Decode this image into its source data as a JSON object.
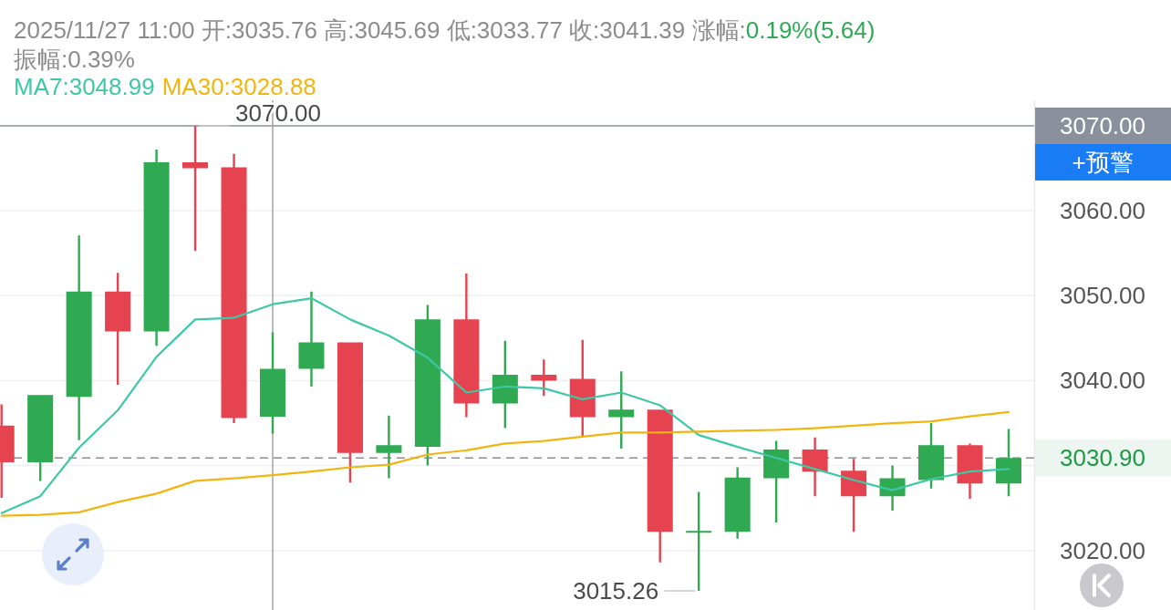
{
  "chart_data": {
    "type": "candlestick",
    "title": "2025/11/27 11:00 开:3035.76 高:3045.69 低:3033.77 收:3041.39 涨幅:0.19%(5.64)",
    "subtitle": "振幅:0.39%",
    "categories": [
      null,
      null,
      null,
      null,
      null,
      null,
      null,
      null,
      null,
      null,
      null,
      null,
      null,
      null,
      null,
      null,
      null,
      null,
      null,
      null,
      null,
      null,
      null,
      null,
      null,
      null,
      null
    ],
    "ohlc": [
      [
        3034.7,
        3037.2,
        3026.2,
        3030.4
      ],
      [
        3030.4,
        3038.3,
        3028.2,
        3038.3
      ],
      [
        3038.1,
        3057.1,
        3033.0,
        3050.5
      ],
      [
        3050.5,
        3052.7,
        3039.5,
        3045.8
      ],
      [
        3045.8,
        3067.2,
        3044.1,
        3065.7
      ],
      [
        3065.7,
        3070.0,
        3055.3,
        3065.0
      ],
      [
        3065.1,
        3066.7,
        3035.0,
        3035.6
      ],
      [
        3035.76,
        3045.69,
        3033.77,
        3041.39
      ],
      [
        3041.4,
        3050.5,
        3039.3,
        3044.5
      ],
      [
        3044.5,
        3044.5,
        3028.0,
        3031.5
      ],
      [
        3031.5,
        3035.9,
        3028.5,
        3032.4
      ],
      [
        3032.2,
        3048.9,
        3030.0,
        3047.2
      ],
      [
        3047.2,
        3052.6,
        3035.7,
        3037.3
      ],
      [
        3037.3,
        3044.7,
        3034.4,
        3040.7
      ],
      [
        3040.7,
        3042.5,
        3038.2,
        3040.0
      ],
      [
        3040.2,
        3044.8,
        3033.4,
        3035.7
      ],
      [
        3035.7,
        3041.1,
        3032.0,
        3036.6
      ],
      [
        3036.6,
        3036.6,
        3018.6,
        3022.2
      ],
      [
        3022.1,
        3026.9,
        3015.26,
        3022.3
      ],
      [
        3022.2,
        3029.8,
        3021.4,
        3028.6
      ],
      [
        3028.5,
        3032.9,
        3023.3,
        3031.9
      ],
      [
        3031.9,
        3033.3,
        3026.4,
        3029.3
      ],
      [
        3029.4,
        3030.8,
        3022.2,
        3026.4
      ],
      [
        3026.4,
        3030.0,
        3024.7,
        3028.5
      ],
      [
        3028.3,
        3035.0,
        3027.3,
        3032.4
      ],
      [
        3032.4,
        3032.6,
        3026.1,
        3027.9
      ],
      [
        3027.9,
        3034.3,
        3026.4,
        3030.9
      ]
    ],
    "colors": [
      "#e5434f",
      "#2fa952",
      "#2fa952",
      "#e5434f",
      "#2fa952",
      "#e5434f",
      "#e5434f",
      "#2fa952",
      "#2fa952",
      "#e5434f",
      "#2fa952",
      "#2fa952",
      "#e5434f",
      "#2fa952",
      "#e5434f",
      "#e5434f",
      "#2fa952",
      "#e5434f",
      "#2fa952",
      "#2fa952",
      "#2fa952",
      "#e5434f",
      "#e5434f",
      "#2fa952",
      "#2fa952",
      "#e5434f",
      "#2fa952"
    ],
    "series": [
      {
        "type": "line",
        "name": "MA7:3048.99",
        "color": "#3ec8a6",
        "values": [
          3024.4,
          3026.4,
          3032.1,
          3036.5,
          3042.8,
          3047.2,
          3047.4,
          3048.99,
          3049.7,
          3047.2,
          3045.3,
          3042.7,
          3038.6,
          3039.3,
          3039.1,
          3037.8,
          3038.6,
          3037.1,
          3033.6,
          3032.2,
          3030.9,
          3029.6,
          3028.3,
          3027.1,
          3028.4,
          3029.3,
          3029.6
        ]
      },
      {
        "type": "line",
        "name": "MA30:3028.88",
        "color": "#f2b50f",
        "values": [
          3024.1,
          3024.2,
          3024.5,
          3025.7,
          3026.7,
          3028.2,
          3028.5,
          3028.88,
          3029.3,
          3029.8,
          3030.1,
          3031.3,
          3031.8,
          3032.6,
          3032.9,
          3033.4,
          3033.9,
          3033.9,
          3034.0,
          3034.1,
          3034.2,
          3034.4,
          3034.7,
          3035.0,
          3035.2,
          3035.8,
          3036.3
        ]
      }
    ],
    "ylim": [
      3013,
      3073
    ],
    "yticks": [
      {
        "value": 3020,
        "label": "3020.00"
      },
      {
        "value": 3030,
        "label": null
      },
      {
        "value": 3040,
        "label": "3040.00"
      },
      {
        "value": 3050,
        "label": "3050.00"
      },
      {
        "value": 3060,
        "label": "3060.00"
      }
    ],
    "grid": "y",
    "legend": "top left",
    "ref_lines": [
      {
        "axis": "y",
        "value": 3070,
        "color": "#8a919c"
      },
      {
        "axis": "y",
        "value": 3030.9,
        "color": "#8e8e8e",
        "line_style": "dashed"
      }
    ],
    "annotations": [
      "3070.00",
      "3030.90",
      "3070.00",
      "3015.26",
      "+预警"
    ]
  }
}
